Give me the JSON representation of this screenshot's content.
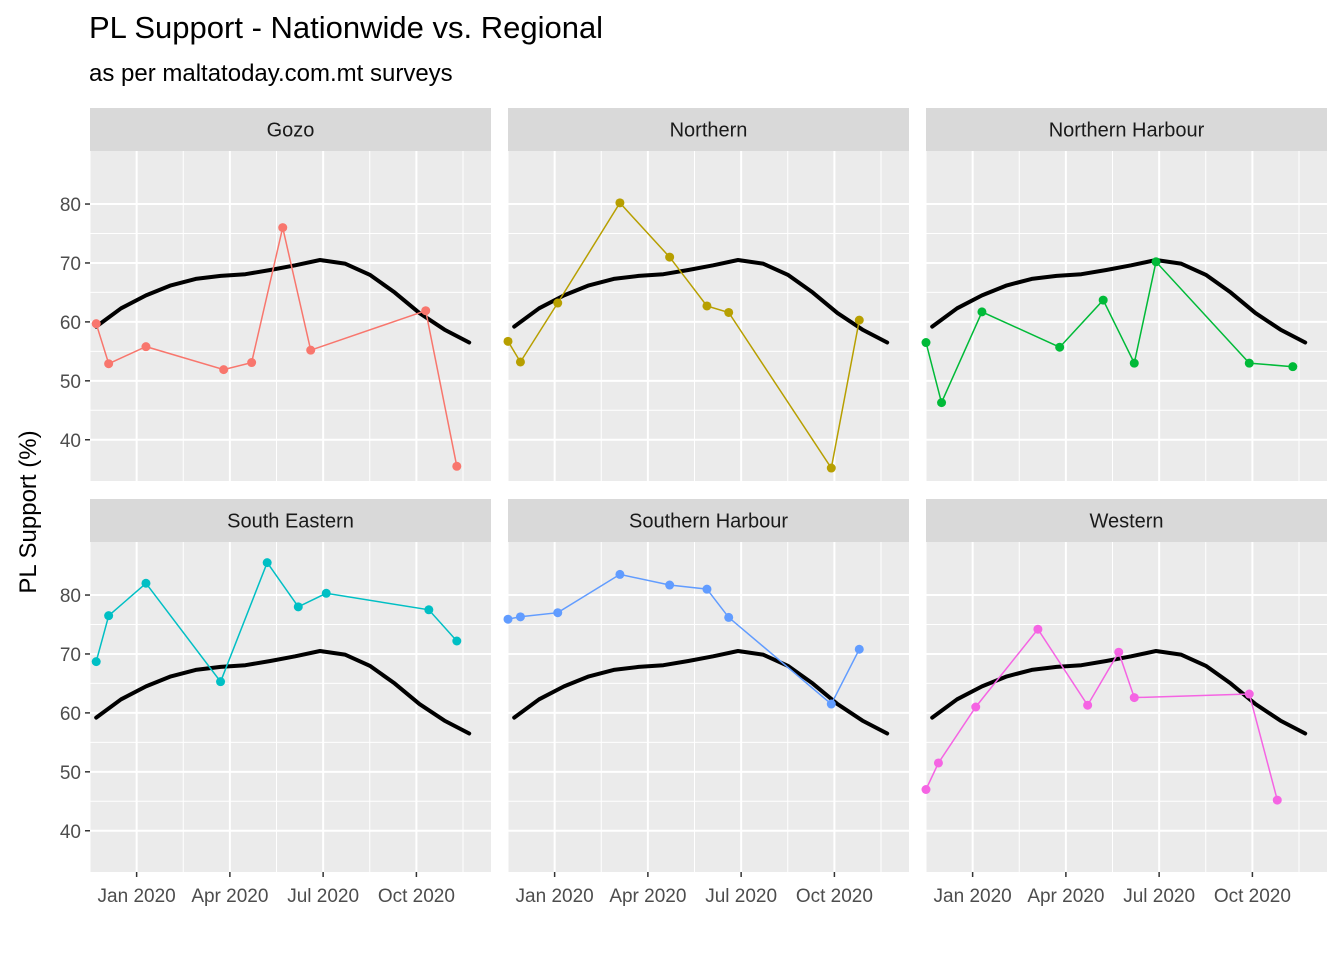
{
  "chart_data": {
    "type": "line",
    "title": "PL Support - Nationwide vs. Regional",
    "subtitle": "as per maltatoday.com.mt surveys",
    "ylabel": "PL Support (%)",
    "xlabel": "",
    "ylim": [
      33,
      89
    ],
    "xlim": [
      -0.5,
      12.4
    ],
    "x_ticks": [
      {
        "x": 1,
        "label": "Jan 2020"
      },
      {
        "x": 4,
        "label": "Apr 2020"
      },
      {
        "x": 7,
        "label": "Jul 2020"
      },
      {
        "x": 10,
        "label": "Oct 2020"
      }
    ],
    "y_ticks": [
      40,
      50,
      60,
      70,
      80
    ],
    "grid": true,
    "facet_layout": {
      "rows": 2,
      "cols": 3
    },
    "nationwide": {
      "color": "#000000",
      "x": [
        -0.3,
        0.5,
        1.3,
        2.1,
        2.9,
        3.7,
        4.5,
        5.3,
        6.1,
        6.9,
        7.7,
        8.5,
        9.3,
        10.1,
        10.9,
        11.7
      ],
      "values": [
        59.2,
        62.3,
        64.5,
        66.2,
        67.3,
        67.8,
        68.1,
        68.8,
        69.6,
        70.5,
        69.9,
        68.0,
        65.0,
        61.5,
        58.7,
        56.5
      ]
    },
    "series": [
      {
        "name": "Gozo",
        "color": "#F8766D",
        "x": [
          -0.3,
          0.1,
          1.3,
          3.8,
          4.7,
          5.7,
          6.6,
          10.3,
          11.3
        ],
        "values": [
          59.7,
          52.9,
          55.8,
          51.9,
          53.1,
          76.0,
          55.2,
          61.9,
          35.5
        ]
      },
      {
        "name": "Northern",
        "color": "#B79F00",
        "x": [
          -0.5,
          -0.1,
          1.1,
          3.1,
          4.7,
          5.9,
          6.6,
          9.9,
          10.8
        ],
        "values": [
          56.7,
          53.2,
          63.2,
          80.2,
          71.0,
          62.7,
          61.6,
          35.2,
          60.3
        ]
      },
      {
        "name": "Northern Harbour",
        "color": "#00BA38",
        "x": [
          -0.5,
          0.0,
          1.3,
          3.8,
          5.2,
          6.2,
          6.9,
          9.9,
          11.3
        ],
        "values": [
          56.5,
          46.3,
          61.7,
          55.7,
          63.7,
          53.0,
          70.2,
          53.0,
          52.4
        ]
      },
      {
        "name": "South Eastern",
        "color": "#00BFC4",
        "x": [
          -0.3,
          0.1,
          1.3,
          3.7,
          5.2,
          6.2,
          7.1,
          10.4,
          11.3
        ],
        "values": [
          68.7,
          76.5,
          82.0,
          65.3,
          85.5,
          78.0,
          80.3,
          77.5,
          72.2
        ]
      },
      {
        "name": "Southern Harbour",
        "color": "#619CFF",
        "x": [
          -0.5,
          -0.1,
          1.1,
          3.1,
          4.7,
          5.9,
          6.6,
          9.9,
          10.8
        ],
        "values": [
          75.9,
          76.3,
          77.0,
          83.5,
          81.7,
          81.0,
          76.2,
          61.5,
          70.8
        ]
      },
      {
        "name": "Western",
        "color": "#F564E3",
        "x": [
          -0.5,
          -0.1,
          1.1,
          3.1,
          4.7,
          5.7,
          6.2,
          9.9,
          10.8
        ],
        "values": [
          47.0,
          51.5,
          61.0,
          74.2,
          61.3,
          70.3,
          62.6,
          63.2,
          45.2
        ]
      }
    ]
  }
}
